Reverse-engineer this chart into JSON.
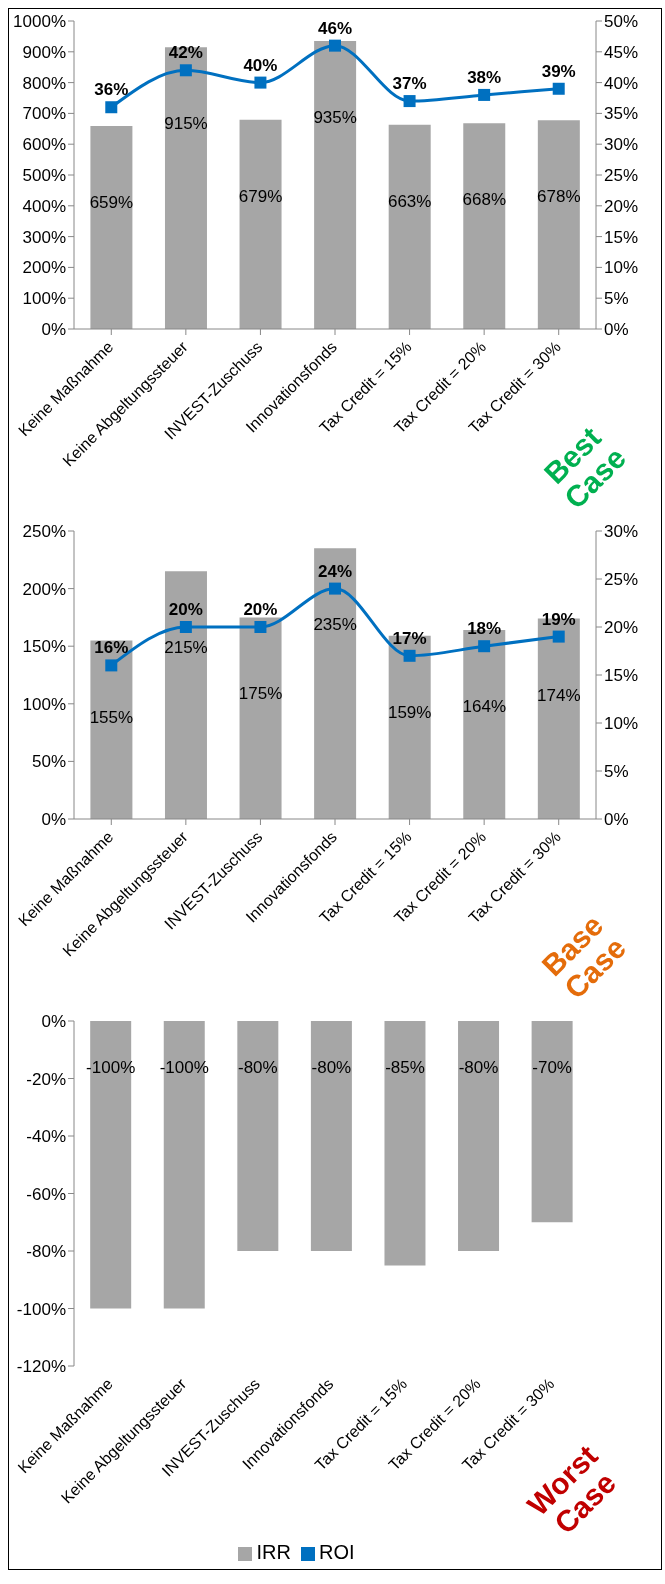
{
  "chart_data": [
    {
      "type": "bar",
      "categories": [
        "Keine Maßnahme",
        "Keine Abgeltungssteuer",
        "INVEST-Zuschuss",
        "Innovationsfonds",
        "Tax Credit = 15%",
        "Tax Credit = 20%",
        "Tax Credit = 30%"
      ],
      "series": [
        {
          "color": "#a6a6a6",
          "values": [
            659,
            915,
            679,
            935,
            663,
            668,
            678
          ],
          "value_labels": [
            "659%",
            "915%",
            "679%",
            "935%",
            "663%",
            "668%",
            "678%"
          ]
        },
        {
          "type": "line",
          "axis": "y2",
          "color": "#0070c0",
          "values": [
            36,
            42,
            40,
            46,
            37,
            38,
            39
          ],
          "value_labels": [
            "36%",
            "42%",
            "40%",
            "46%",
            "37%",
            "38%",
            "39%"
          ]
        }
      ],
      "ylim": [
        0,
        1000
      ],
      "yticks": [
        {
          "value": 0,
          "label": "0%"
        },
        {
          "value": 100,
          "label": "100%"
        },
        {
          "value": 200,
          "label": "200%"
        },
        {
          "value": 300,
          "label": "300%"
        },
        {
          "value": 400,
          "label": "400%"
        },
        {
          "value": 500,
          "label": "500%"
        },
        {
          "value": 600,
          "label": "600%"
        },
        {
          "value": 700,
          "label": "700%"
        },
        {
          "value": 800,
          "label": "800%"
        },
        {
          "value": 900,
          "label": "900%"
        },
        {
          "value": 1000,
          "label": "1000%"
        }
      ],
      "y2lim": [
        0,
        50
      ],
      "y2ticks": [
        {
          "value": 0,
          "label": "0%"
        },
        {
          "value": 5,
          "label": "5%"
        },
        {
          "value": 10,
          "label": "10%"
        },
        {
          "value": 15,
          "label": "15%"
        },
        {
          "value": 20,
          "label": "20%"
        },
        {
          "value": 25,
          "label": "25%"
        },
        {
          "value": 30,
          "label": "30%"
        },
        {
          "value": 35,
          "label": "35%"
        },
        {
          "value": 40,
          "label": "40%"
        },
        {
          "value": 45,
          "label": "45%"
        },
        {
          "value": 50,
          "label": "50%"
        }
      ],
      "marker": "square",
      "annotations": [
        "Best Case"
      ]
    },
    {
      "type": "bar",
      "categories": [
        "Keine Maßnahme",
        "Keine Abgeltungssteuer",
        "INVEST-Zuschuss",
        "Innovationsfonds",
        "Tax Credit = 15%",
        "Tax Credit = 20%",
        "Tax Credit = 30%"
      ],
      "series": [
        {
          "color": "#a6a6a6",
          "values": [
            155,
            215,
            175,
            235,
            159,
            164,
            174
          ],
          "value_labels": [
            "155%",
            "215%",
            "175%",
            "235%",
            "159%",
            "164%",
            "174%"
          ]
        },
        {
          "type": "line",
          "axis": "y2",
          "color": "#0070c0",
          "values": [
            16,
            20,
            20,
            24,
            17,
            18,
            19
          ],
          "value_labels": [
            "16%",
            "20%",
            "20%",
            "24%",
            "17%",
            "18%",
            "19%"
          ]
        }
      ],
      "ylim": [
        0,
        250
      ],
      "yticks": [
        {
          "value": 0,
          "label": "0%"
        },
        {
          "value": 50,
          "label": "50%"
        },
        {
          "value": 100,
          "label": "100%"
        },
        {
          "value": 150,
          "label": "150%"
        },
        {
          "value": 200,
          "label": "200%"
        },
        {
          "value": 250,
          "label": "250%"
        }
      ],
      "y2lim": [
        0,
        30
      ],
      "y2ticks": [
        {
          "value": 0,
          "label": "0%"
        },
        {
          "value": 5,
          "label": "5%"
        },
        {
          "value": 10,
          "label": "10%"
        },
        {
          "value": 15,
          "label": "15%"
        },
        {
          "value": 20,
          "label": "20%"
        },
        {
          "value": 25,
          "label": "25%"
        },
        {
          "value": 30,
          "label": "30%"
        }
      ],
      "marker": "square",
      "annotations": [
        "Base Case"
      ]
    },
    {
      "type": "bar",
      "categories": [
        "Keine Maßnahme",
        "Keine Abgeltungssteuer",
        "INVEST-Zuschuss",
        "Innovationsfonds",
        "Tax Credit = 15%",
        "Tax Credit = 20%",
        "Tax Credit = 30%"
      ],
      "series": [
        {
          "name": "ROI",
          "type": "line",
          "color": "#0070c0",
          "values": [
            null,
            null,
            null,
            null,
            null,
            null,
            null
          ]
        },
        {
          "name": "IRR",
          "color": "#a6a6a6",
          "values": [
            -100,
            -100,
            -80,
            -80,
            -85,
            -80,
            -70
          ],
          "value_labels": [
            "-100%",
            "-100%",
            "-80%",
            "-80%",
            "-85%",
            "-80%",
            "-70%"
          ]
        }
      ],
      "ylim": [
        -120,
        0
      ],
      "yticks": [
        {
          "value": -120,
          "label": "-120%"
        },
        {
          "value": -100,
          "label": "-100%"
        },
        {
          "value": -80,
          "label": "-80%"
        },
        {
          "value": -60,
          "label": "-60%"
        },
        {
          "value": -40,
          "label": "-40%"
        },
        {
          "value": -20,
          "label": "-20%"
        },
        {
          "value": 0,
          "label": "0%"
        }
      ],
      "legend": "bottom",
      "annotations": [
        "Worst Case"
      ]
    }
  ]
}
